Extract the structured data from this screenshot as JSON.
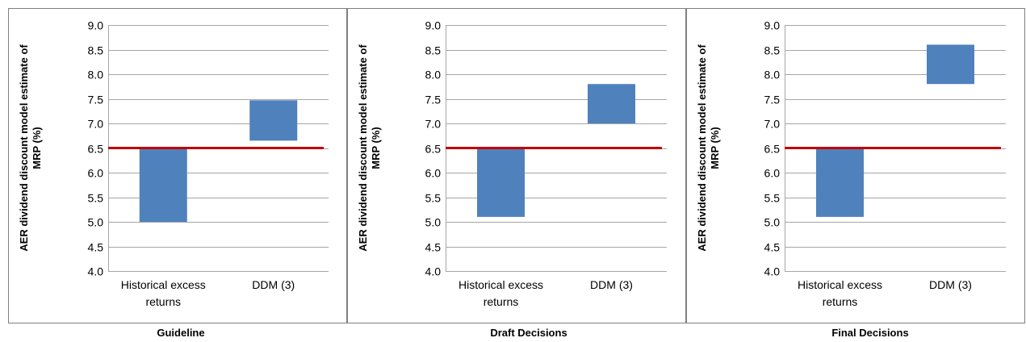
{
  "chart_data": [
    {
      "type": "bar",
      "subtype": "floating-range",
      "caption": "Guideline",
      "ylabel": "AER dividend discount model estimate of MRP (%)",
      "ylim": [
        4.0,
        9.0
      ],
      "yticks": [
        "4.0",
        "4.5",
        "5.0",
        "5.5",
        "6.0",
        "6.5",
        "7.0",
        "7.5",
        "8.0",
        "8.5",
        "9.0"
      ],
      "categories": [
        "Historical excess returns",
        "DDM (3)"
      ],
      "ranges": [
        [
          5.0,
          6.5
        ],
        [
          6.65,
          7.47
        ]
      ],
      "reference_line": 6.5,
      "grid": true
    },
    {
      "type": "bar",
      "subtype": "floating-range",
      "caption": "Draft Decisions",
      "ylabel": "AER dividend discount model estimate of MRP (%)",
      "ylim": [
        4.0,
        9.0
      ],
      "yticks": [
        "4.0",
        "4.5",
        "5.0",
        "5.5",
        "6.0",
        "6.5",
        "7.0",
        "7.5",
        "8.0",
        "8.5",
        "9.0"
      ],
      "categories": [
        "Historical excess returns",
        "DDM (3)"
      ],
      "ranges": [
        [
          5.1,
          6.5
        ],
        [
          7.0,
          7.8
        ]
      ],
      "reference_line": 6.5,
      "grid": true
    },
    {
      "type": "bar",
      "subtype": "floating-range",
      "caption": "Final Decisions",
      "ylabel": "AER dividend discount model estimate of MRP (%)",
      "ylim": [
        4.0,
        9.0
      ],
      "yticks": [
        "4.0",
        "4.5",
        "5.0",
        "5.5",
        "6.0",
        "6.5",
        "7.0",
        "7.5",
        "8.0",
        "8.5",
        "9.0"
      ],
      "categories": [
        "Historical excess returns",
        "DDM (3)"
      ],
      "ranges": [
        [
          5.1,
          6.5
        ],
        [
          7.8,
          8.6
        ]
      ],
      "reference_line": 6.5,
      "grid": true
    }
  ],
  "colors": {
    "bar": "#4F81BD",
    "reference_line": "#C00000",
    "grid": "#A6A6A6",
    "frame": "#7F7F7F"
  }
}
